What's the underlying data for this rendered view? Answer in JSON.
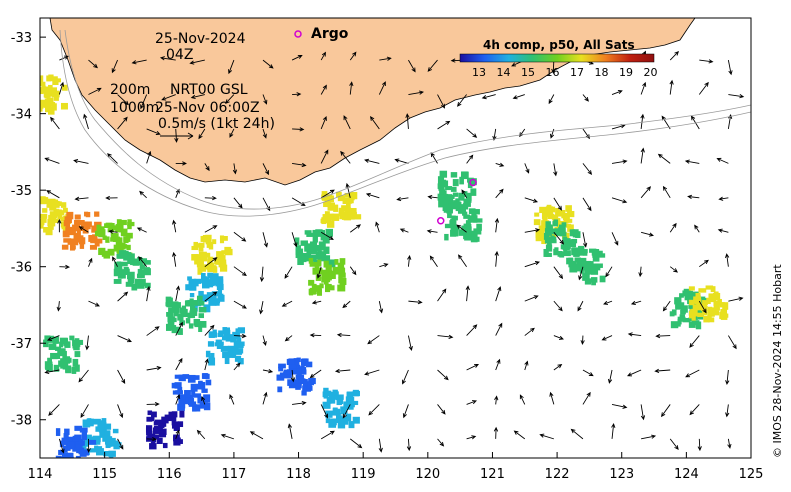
{
  "map": {
    "date_line": "25-Nov-2024",
    "time_line": "04Z",
    "depth_line1": "200m",
    "depth_line1_b": "NRT00 GSL",
    "depth_line2": "1000m",
    "depth_line2_b": "25-Nov 06:00Z",
    "scale_label": "0.5m/s (1kt 24h)",
    "argo_label": "Argo",
    "argo_floats": [
      [
        120.7,
        -34.9
      ],
      [
        120.2,
        -35.4
      ]
    ],
    "colorbar_title": "4h comp, p50, All Sats",
    "colorbar_ticks": [
      "13",
      "14",
      "15",
      "16",
      "17",
      "18",
      "19",
      "20"
    ],
    "colorbar_colors": [
      "#1a0fa0",
      "#1f5ff0",
      "#20b0e0",
      "#30c070",
      "#70d020",
      "#e8e020",
      "#f08020",
      "#c02010",
      "#901010"
    ],
    "credit": "© IMOS 28-Nov-2024 14:55 Hobart",
    "x_ticks": [
      "114",
      "115",
      "116",
      "117",
      "118",
      "119",
      "120",
      "121",
      "122",
      "123",
      "124",
      "125"
    ],
    "y_ticks": [
      "-33",
      "-34",
      "-35",
      "-36",
      "-37",
      "-38"
    ],
    "land_color": "#f9c89b",
    "sst_patches": [
      {
        "lon": 114.1,
        "lat": -33.7,
        "color": "#e8e020"
      },
      {
        "lon": 114.15,
        "lat": -35.3,
        "color": "#e8e020"
      },
      {
        "lon": 114.6,
        "lat": -35.5,
        "color": "#f08020"
      },
      {
        "lon": 115.1,
        "lat": -35.6,
        "color": "#70d020"
      },
      {
        "lon": 116.6,
        "lat": -35.8,
        "color": "#e8e020"
      },
      {
        "lon": 116.5,
        "lat": -36.3,
        "color": "#20b0e0"
      },
      {
        "lon": 116.2,
        "lat": -36.6,
        "color": "#30c070"
      },
      {
        "lon": 116.8,
        "lat": -37.0,
        "color": "#20b0e0"
      },
      {
        "lon": 116.3,
        "lat": -37.6,
        "color": "#1f5ff0"
      },
      {
        "lon": 115.9,
        "lat": -38.1,
        "color": "#1a0fa0"
      },
      {
        "lon": 114.9,
        "lat": -38.2,
        "color": "#20b0e0"
      },
      {
        "lon": 114.5,
        "lat": -38.3,
        "color": "#1f5ff0"
      },
      {
        "lon": 114.3,
        "lat": -37.1,
        "color": "#30c070"
      },
      {
        "lon": 115.4,
        "lat": -36.0,
        "color": "#30c070"
      },
      {
        "lon": 118.2,
        "lat": -35.7,
        "color": "#30c070"
      },
      {
        "lon": 118.4,
        "lat": -36.1,
        "color": "#70d020"
      },
      {
        "lon": 118.6,
        "lat": -35.2,
        "color": "#e8e020"
      },
      {
        "lon": 120.4,
        "lat": -34.95,
        "color": "#30c070"
      },
      {
        "lon": 120.5,
        "lat": -35.4,
        "color": "#30c070"
      },
      {
        "lon": 121.9,
        "lat": -35.4,
        "color": "#e8e020"
      },
      {
        "lon": 122.05,
        "lat": -35.6,
        "color": "#30c070"
      },
      {
        "lon": 122.4,
        "lat": -35.95,
        "color": "#30c070"
      },
      {
        "lon": 124.0,
        "lat": -36.5,
        "color": "#30c070"
      },
      {
        "lon": 124.3,
        "lat": -36.45,
        "color": "#e8e020"
      },
      {
        "lon": 118.6,
        "lat": -37.8,
        "color": "#20b0e0"
      },
      {
        "lon": 117.9,
        "lat": -37.4,
        "color": "#1f5ff0"
      }
    ]
  }
}
